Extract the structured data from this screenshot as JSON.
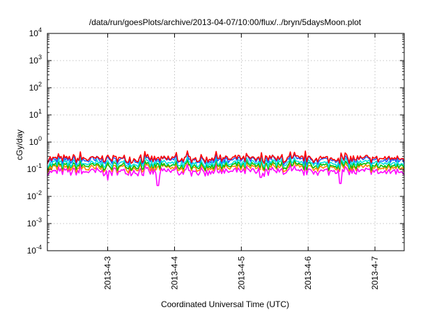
{
  "chart_data": {
    "type": "line",
    "title": "/data/run/goesPlots/archive/2013-04-07/10:00/flux/../bryn/5daysMoon.plot",
    "xlabel": "Coordinated Universal Time (UTC)",
    "ylabel": "cGy/day",
    "yscale": "log",
    "ylim": [
      0.0001,
      10000
    ],
    "y_ticks": [
      {
        "base": "10",
        "exp": "-4"
      },
      {
        "base": "10",
        "exp": "-3"
      },
      {
        "base": "10",
        "exp": "-2"
      },
      {
        "base": "10",
        "exp": "-1"
      },
      {
        "base": "10",
        "exp": "0"
      },
      {
        "base": "10",
        "exp": "1"
      },
      {
        "base": "10",
        "exp": "2"
      },
      {
        "base": "10",
        "exp": "3"
      },
      {
        "base": "10",
        "exp": "4"
      }
    ],
    "xlim": [
      "2013-04-02 02:20",
      "2013-04-07 10:30"
    ],
    "x_ticks": [
      "2013-4-3",
      "2013-4-4",
      "2013-4-5",
      "2013-4-6",
      "2013-4-7"
    ],
    "grid": true,
    "legend": "none",
    "series": [
      {
        "color": "#ff00ff",
        "level": 0.08,
        "dips": [
          {
            "at": "2013-04-03 00:00",
            "value": 0.04
          },
          {
            "at": "2013-04-03 18:00",
            "value": 0.025
          },
          {
            "at": "2013-04-05 07:00",
            "value": 0.05
          },
          {
            "at": "2013-04-06 11:30",
            "value": 0.03
          }
        ]
      },
      {
        "color": "#ff8800",
        "level": 0.11,
        "dips": []
      },
      {
        "color": "#00c000",
        "level": 0.13,
        "dips": []
      },
      {
        "color": "#00e0e0",
        "level": 0.16,
        "dips": []
      },
      {
        "color": "#2060ff",
        "level": 0.21,
        "dips": []
      },
      {
        "color": "#ff0000",
        "level": 0.24,
        "dips": []
      }
    ]
  }
}
